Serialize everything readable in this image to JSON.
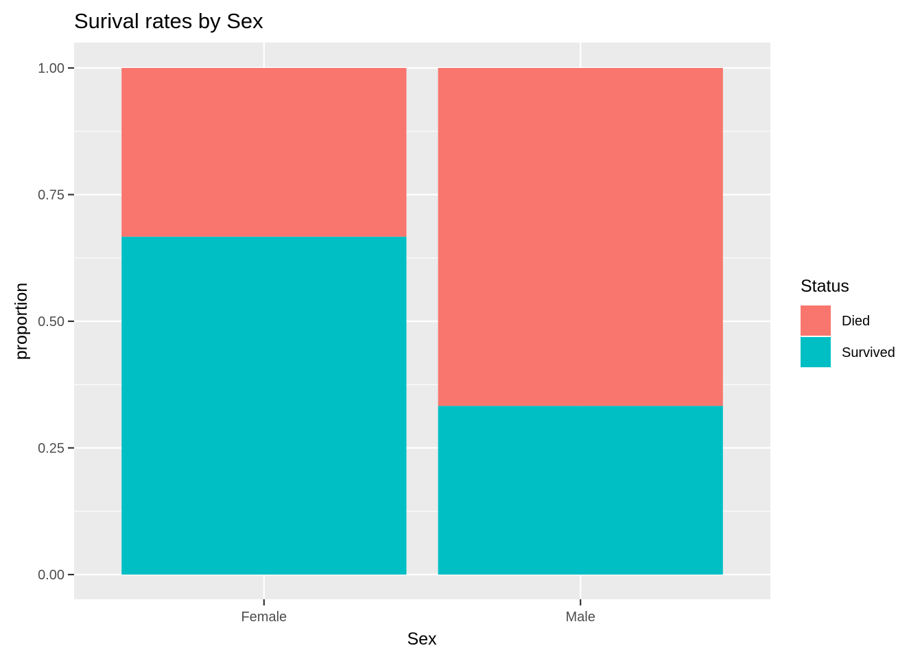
{
  "chart_data": {
    "type": "bar",
    "stacked": true,
    "title": "Surival rates by Sex",
    "xlabel": "Sex",
    "ylabel": "proportion",
    "categories": [
      "Female",
      "Male"
    ],
    "series": [
      {
        "name": "Died",
        "values": [
          0.333,
          0.667
        ],
        "color": "#F8766D"
      },
      {
        "name": "Survived",
        "values": [
          0.667,
          0.333
        ],
        "color": "#00BFC4"
      }
    ],
    "ylim": [
      0,
      1
    ],
    "yticks": [
      "0.00",
      "0.25",
      "0.50",
      "0.75",
      "1.00"
    ],
    "grid": true,
    "legend": {
      "title": "Status",
      "position": "right"
    },
    "panel_color": "#EBEBEB"
  }
}
